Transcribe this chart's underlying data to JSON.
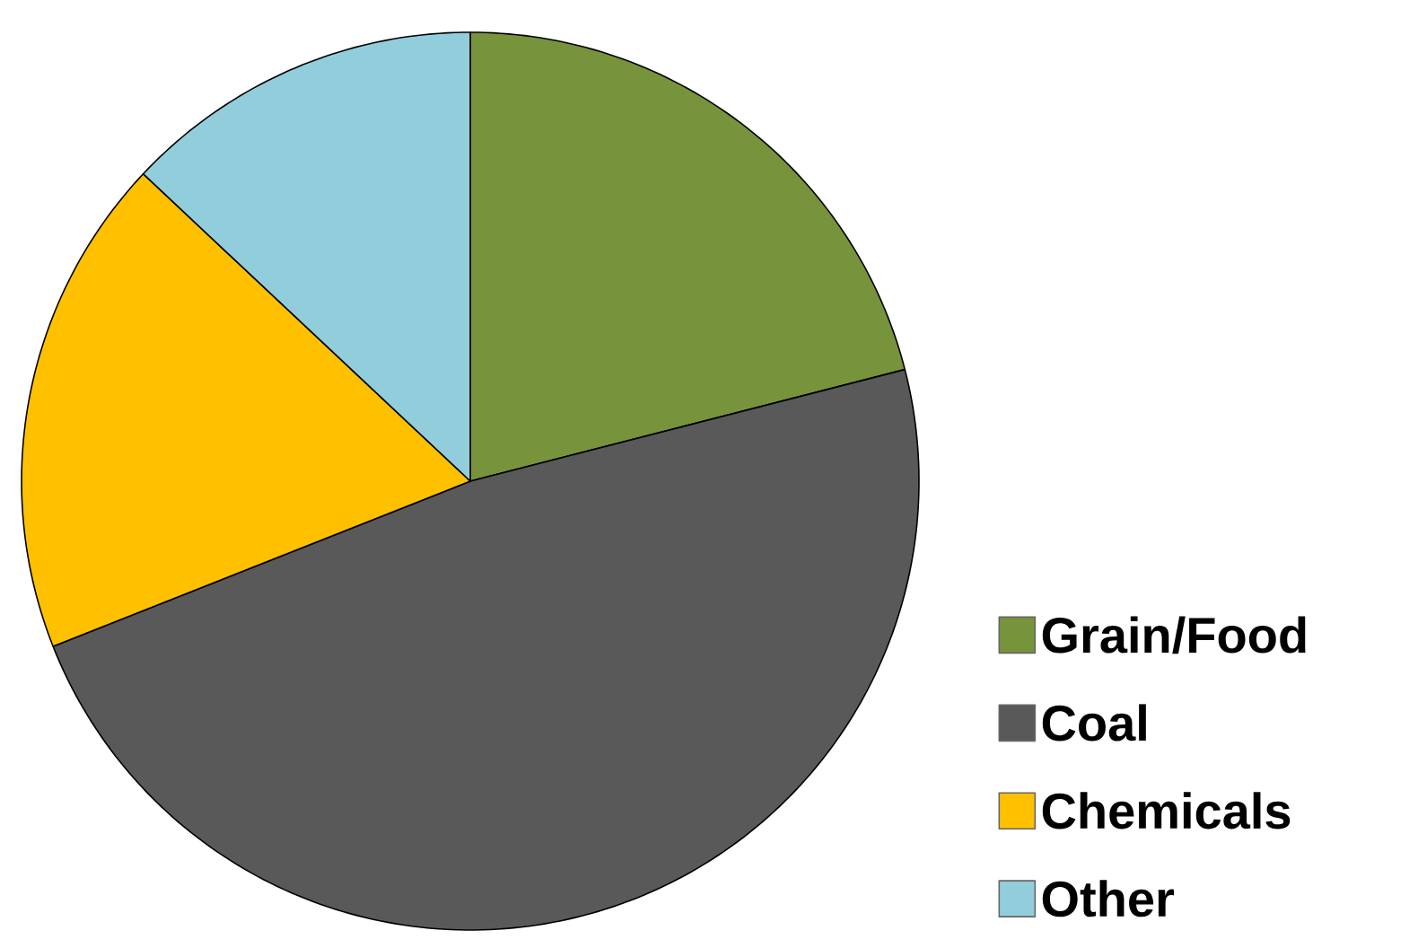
{
  "chart_data": {
    "type": "pie",
    "categories": [
      "Grain/Food",
      "Coal",
      "Chemicals",
      "Other"
    ],
    "values": [
      21,
      48,
      18,
      13
    ],
    "colors": [
      "#77933c",
      "#595959",
      "#ffc000",
      "#92cddc"
    ],
    "legend": "bottom right"
  }
}
